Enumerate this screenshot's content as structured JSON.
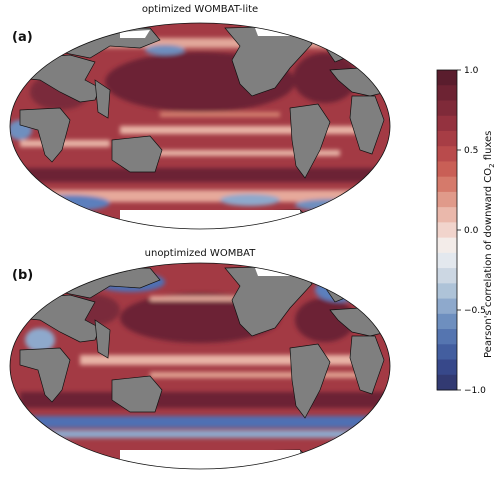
{
  "panels": [
    {
      "letter": "(a)",
      "title": "optimized WOMBAT-lite"
    },
    {
      "letter": "(b)",
      "title": "unoptimized WOMBAT"
    }
  ],
  "colorbar": {
    "label": "Pearson's correlation of downward CO",
    "label_sub": "2",
    "label_tail": " fluxes",
    "ticks": [
      "1.0",
      "0.5",
      "0.0",
      "−0.5",
      "−1.0"
    ],
    "colors": [
      "#5a1d2d",
      "#6d2333",
      "#7f2a39",
      "#94323f",
      "#a73d45",
      "#b94b4c",
      "#c95f56",
      "#d57a6b",
      "#e09a8a",
      "#eab8ab",
      "#f1d4cc",
      "#f3ece9",
      "#e3e8ee",
      "#ccd7e3",
      "#aec3d8",
      "#8ea9cc",
      "#6e8fbf",
      "#5575b0",
      "#435e9f",
      "#37488a",
      "#323a72"
    ]
  },
  "colors": {
    "land": "#7f7f7f",
    "ocean_red": "#a33a44",
    "ocean_dark": "#6c2434",
    "ocean_light": "#e2a79a",
    "ocean_blue": "#5b7fbd",
    "sea_ice": "#ffffff"
  }
}
